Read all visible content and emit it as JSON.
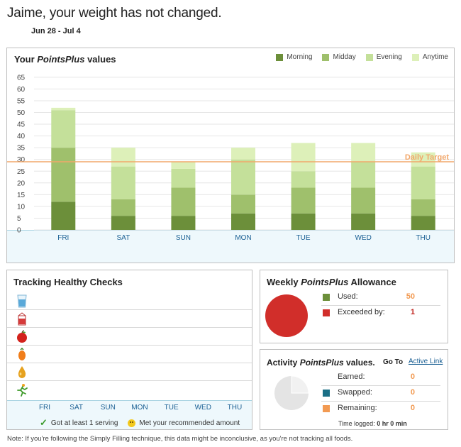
{
  "header": {
    "headline": "Jaime, your weight has not changed.",
    "date_range": "Jun 28 - Jul 4"
  },
  "points_chart": {
    "title_prefix": "Your ",
    "title_italic": "PointsPlus",
    "title_suffix": " values",
    "target_label": "Daily Target"
  },
  "colors": {
    "morning": "#6c8f3a",
    "midday": "#9fc06c",
    "evening": "#c4e09a",
    "anytime": "#ddf0b9",
    "target_line": "#f2a76a",
    "used": "#6c8f3a",
    "exceeded": "#d12e2a",
    "swapped": "#1a6f86",
    "remaining": "#f29a52"
  },
  "chart_data": {
    "type": "bar",
    "stacked": true,
    "categories": [
      "FRI",
      "SAT",
      "SUN",
      "MON",
      "TUE",
      "WED",
      "THU"
    ],
    "series": [
      {
        "name": "Morning",
        "values": [
          12,
          6,
          6,
          7,
          7,
          7,
          6
        ]
      },
      {
        "name": "Midday",
        "values": [
          23,
          7,
          12,
          8,
          11,
          11,
          7
        ]
      },
      {
        "name": "Evening",
        "values": [
          16,
          14,
          8,
          15,
          7,
          11,
          14
        ]
      },
      {
        "name": "Anytime",
        "values": [
          1,
          8,
          3,
          5,
          12,
          8,
          6
        ]
      }
    ],
    "y_ticks": [
      0,
      5,
      10,
      15,
      20,
      25,
      30,
      35,
      40,
      45,
      50,
      55,
      60,
      65
    ],
    "ylim": [
      0,
      65
    ],
    "daily_target": 29,
    "legend_position": "top-right",
    "grid": true
  },
  "tracking": {
    "title": "Tracking Healthy Checks",
    "rows": [
      {
        "icon": "water-glass-icon"
      },
      {
        "icon": "milk-carton-icon"
      },
      {
        "icon": "apple-icon"
      },
      {
        "icon": "carrot-icon"
      },
      {
        "icon": "oil-drop-icon"
      },
      {
        "icon": "activity-runner-icon"
      }
    ],
    "days": [
      "FRI",
      "SAT",
      "SUN",
      "MON",
      "TUE",
      "WED",
      "THU"
    ],
    "legend_serving": "Got at least 1 serving",
    "legend_met": "Met your recommended amount"
  },
  "weekly": {
    "title_prefix": "Weekly ",
    "title_italic": "PointsPlus",
    "title_suffix": " Allowance",
    "used_label": "Used:",
    "used_value": "50",
    "exceeded_label": "Exceeded by:",
    "exceeded_value": "1"
  },
  "activity": {
    "title_prefix": "Activity ",
    "title_italic": "PointsPlus",
    "title_suffix": " values.",
    "goto_label": "Go To",
    "link_label": "Active Link",
    "earned_label": "Earned:",
    "earned_value": "0",
    "swapped_label": "Swapped:",
    "swapped_value": "0",
    "remaining_label": "Remaining:",
    "remaining_value": "0",
    "time_logged_label": "Time logged:",
    "time_logged_value": "0 hr 0 min"
  },
  "note": "Note: If you're following the Simply Filling technique, this data might be inconclusive, as you're not tracking all foods."
}
